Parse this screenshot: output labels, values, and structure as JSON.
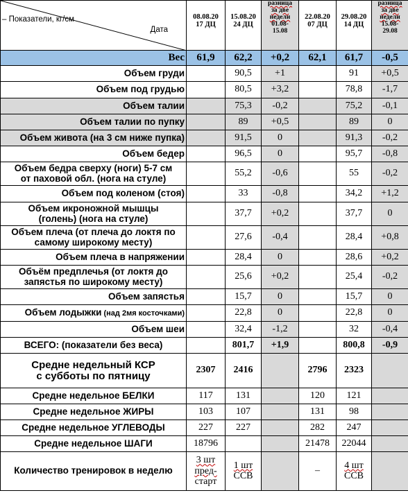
{
  "header": {
    "indicators_label": "Показатели, кг/см",
    "date_label": "Дата",
    "col1": {
      "date": "08.08.20",
      "sub": "17 ДЦ"
    },
    "col2": {
      "date": "15.08.20",
      "sub": "24 ДЦ"
    },
    "col3": {
      "l1": "разница",
      "l2": "за две",
      "l3": "недели",
      "l4": "01.08-",
      "l5": "15.08"
    },
    "col4": {
      "date": "22.08.20",
      "sub": "07 ДЦ"
    },
    "col5": {
      "date": "29.08.20",
      "sub": "14 ДЦ"
    },
    "col6": {
      "l1": "разница",
      "l2": "за две",
      "l3": "недели",
      "l4": "15.08-",
      "l5": "29.08"
    }
  },
  "weight": {
    "label": "Вес",
    "c1": "61,9",
    "c2": "62,2",
    "c3": "+0,2",
    "c4": "62,1",
    "c5": "61,7",
    "c6": "-0,5"
  },
  "rows": [
    {
      "l1": "Объем груди",
      "c1": "",
      "c2": "90,5",
      "c3": "+1",
      "c4": "",
      "c5": "91",
      "c6": "+0,5"
    },
    {
      "l1": "Объем под грудью",
      "c1": "",
      "c2": "80,5",
      "c3": "+3,2",
      "c4": "",
      "c5": "78,8",
      "c6": "-1,7"
    },
    {
      "l1": "Объем талии",
      "c1": "",
      "c2": "75,3",
      "c3": "-0,2",
      "c4": "",
      "c5": "75,2",
      "c6": "-0,1"
    },
    {
      "l1": "Объем талии по пупку",
      "c1": "",
      "c2": "89",
      "c3": "+0,5",
      "c4": "",
      "c5": "89",
      "c6": "0"
    },
    {
      "l1": "Объем живота (на 3 см ниже пупка)",
      "c1": "",
      "c2": "91,5",
      "c3": "0",
      "c4": "",
      "c5": "91,3",
      "c6": "-0,2"
    },
    {
      "l1": "Объем бедер",
      "c1": "",
      "c2": "96,5",
      "c3": "0",
      "c4": "",
      "c5": "95,7",
      "c6": "-0,8"
    },
    {
      "l1": "Объем бедра сверху (ноги) 5-7 см",
      "l2": "от паховой обл. (нога на стуле)",
      "c1": "",
      "c2": "55,2",
      "c3": "-0,6",
      "c4": "",
      "c5": "55",
      "c6": "-0,2"
    },
    {
      "l1": "Объем под коленом (стоя)",
      "c1": "",
      "c2": "33",
      "c3": "-0,8",
      "c4": "",
      "c5": "34,2",
      "c6": "+1,2"
    },
    {
      "l1": "Объем икроножной мышцы",
      "l2": "(голень) (нога на стуле)",
      "c1": "",
      "c2": "37,7",
      "c3": "+0,2",
      "c4": "",
      "c5": "37,7",
      "c6": "0"
    },
    {
      "l1": "Объем плеча (от плеча до локтя по",
      "l2": "самому широкому месту)",
      "c1": "",
      "c2": "27,6",
      "c3": "-0,4",
      "c4": "",
      "c5": "28,4",
      "c6": "+0,8"
    },
    {
      "l1": "Объем плеча в напряжении",
      "c1": "",
      "c2": "28,4",
      "c3": "0",
      "c4": "",
      "c5": "28,6",
      "c6": "+0,2"
    },
    {
      "l1": "Объём предплечья (от локтя до",
      "l2": "запястья по широкому месту)",
      "c1": "",
      "c2": "25,6",
      "c3": "+0,2",
      "c4": "",
      "c5": "25,4",
      "c6": "-0,2"
    },
    {
      "l1": "Объем запястья",
      "c1": "",
      "c2": "15,7",
      "c3": "0",
      "c4": "",
      "c5": "15,7",
      "c6": "0"
    },
    {
      "l1": "Объем лодыжки",
      "l1s": " (над 2мя косточками)",
      "c1": "",
      "c2": "22,8",
      "c3": "0",
      "c4": "",
      "c5": "22,8",
      "c6": "0"
    },
    {
      "l1": "Объем шеи",
      "c1": "",
      "c2": "32,4",
      "c3": "-1,2",
      "c4": "",
      "c5": "32",
      "c6": "-0,4"
    }
  ],
  "total": {
    "label": "ВСЕГО: (показатели без веса)",
    "c1": "",
    "c2": "801,7",
    "c3": "+1,9",
    "c4": "",
    "c5": "800,8",
    "c6": "-0,9"
  },
  "ksr": {
    "l1": "Средне недельный КСР",
    "l2": "с субботы по пятницу",
    "c1": "2307",
    "c2": "2416",
    "c4": "2796",
    "c5": "2323"
  },
  "protein": {
    "label": "Средне недельное БЕЛКИ",
    "c1": "117",
    "c2": "131",
    "c4": "120",
    "c5": "121"
  },
  "fats": {
    "label": "Средне недельное ЖИРЫ",
    "c1": "103",
    "c2": "107",
    "c4": "131",
    "c5": "98"
  },
  "carbs": {
    "label": "Средне недельное УГЛЕВОДЫ",
    "c1": "227",
    "c2": "227",
    "c4": "282",
    "c5": "247"
  },
  "steps": {
    "label": "Средне недельное ШАГИ",
    "c1": "18796",
    "c2": "",
    "c4": "21478",
    "c5": "22044"
  },
  "trainings": {
    "label": "Количество тренировок в неделю",
    "c1": {
      "l1": "3 шт",
      "l2": "пред-",
      "l3": "старт"
    },
    "c2": {
      "l1": "1 шт",
      "l2": "ССВ"
    },
    "c4": "–",
    "c5": {
      "l1": "4 шт",
      "l2": "ССВ"
    }
  }
}
